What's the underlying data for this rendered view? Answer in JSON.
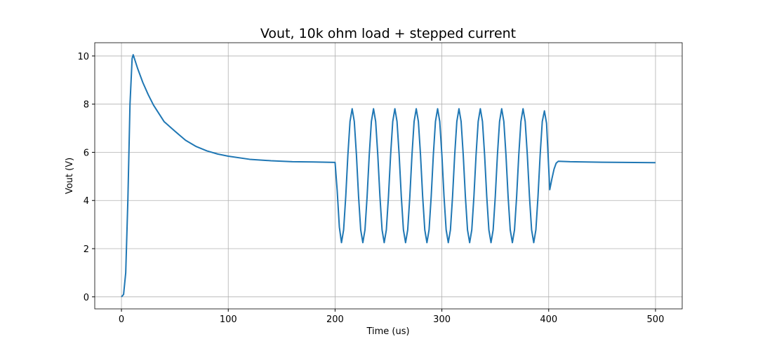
{
  "chart_data": {
    "type": "line",
    "title": "Vout, 10k ohm load + stepped current",
    "x_label": "Time (us)",
    "y_label": "Vout (V)",
    "xlim": [
      -25,
      525
    ],
    "ylim": [
      -0.5,
      10.55
    ],
    "xticks": [
      0,
      100,
      200,
      300,
      400,
      500
    ],
    "yticks": [
      0,
      2,
      4,
      6,
      8,
      10
    ],
    "grid": true,
    "series": [
      {
        "name": "Vout",
        "color": "#1f77b4",
        "x": [
          0,
          2,
          4,
          6,
          8,
          10,
          11,
          15,
          20,
          25,
          30,
          40,
          50,
          60,
          70,
          80,
          90,
          100,
          120,
          140,
          160,
          180,
          200,
          202,
          204,
          206,
          208,
          210,
          212,
          214,
          216,
          218,
          220,
          222,
          224,
          226,
          228,
          230,
          232,
          234,
          236,
          238,
          240,
          242,
          244,
          246,
          248,
          250,
          252,
          254,
          256,
          258,
          260,
          262,
          264,
          266,
          268,
          270,
          272,
          274,
          276,
          278,
          280,
          282,
          284,
          286,
          288,
          290,
          292,
          294,
          296,
          298,
          300,
          302,
          304,
          306,
          308,
          310,
          312,
          314,
          316,
          318,
          320,
          322,
          324,
          326,
          328,
          330,
          332,
          334,
          336,
          338,
          340,
          342,
          344,
          346,
          348,
          350,
          352,
          354,
          356,
          358,
          360,
          362,
          364,
          366,
          368,
          370,
          372,
          374,
          376,
          378,
          380,
          382,
          384,
          386,
          388,
          390,
          392,
          394,
          396,
          398,
          401,
          403,
          405,
          407,
          409,
          420,
          450,
          500
        ],
        "values": [
          0,
          0.1,
          1,
          4,
          8,
          9.9,
          10.05,
          9.5,
          8.9,
          8.4,
          7.96,
          7.27,
          6.88,
          6.5,
          6.24,
          6.06,
          5.93,
          5.84,
          5.71,
          5.65,
          5.61,
          5.6,
          5.58,
          4.4,
          2.9,
          2.25,
          2.78,
          4.17,
          5.89,
          7.28,
          7.81,
          7.28,
          5.89,
          4.17,
          2.78,
          2.25,
          2.78,
          4.17,
          5.89,
          7.28,
          7.81,
          7.28,
          5.89,
          4.17,
          2.78,
          2.25,
          2.78,
          4.17,
          5.89,
          7.28,
          7.81,
          7.28,
          5.89,
          4.17,
          2.78,
          2.25,
          2.78,
          4.17,
          5.89,
          7.28,
          7.81,
          7.28,
          5.89,
          4.17,
          2.78,
          2.25,
          2.78,
          4.17,
          5.89,
          7.28,
          7.81,
          7.28,
          5.89,
          4.17,
          2.78,
          2.25,
          2.78,
          4.17,
          5.89,
          7.28,
          7.81,
          7.28,
          5.89,
          4.17,
          2.78,
          2.25,
          2.78,
          4.17,
          5.89,
          7.28,
          7.81,
          7.28,
          5.89,
          4.17,
          2.78,
          2.25,
          2.78,
          4.17,
          5.89,
          7.28,
          7.81,
          7.28,
          5.89,
          4.17,
          2.78,
          2.25,
          2.78,
          4.17,
          5.89,
          7.28,
          7.81,
          7.28,
          5.89,
          4.17,
          2.78,
          2.25,
          2.78,
          4.17,
          5.89,
          7.28,
          7.72,
          7.2,
          4.45,
          4.9,
          5.3,
          5.55,
          5.63,
          5.61,
          5.59,
          5.57
        ]
      }
    ]
  }
}
